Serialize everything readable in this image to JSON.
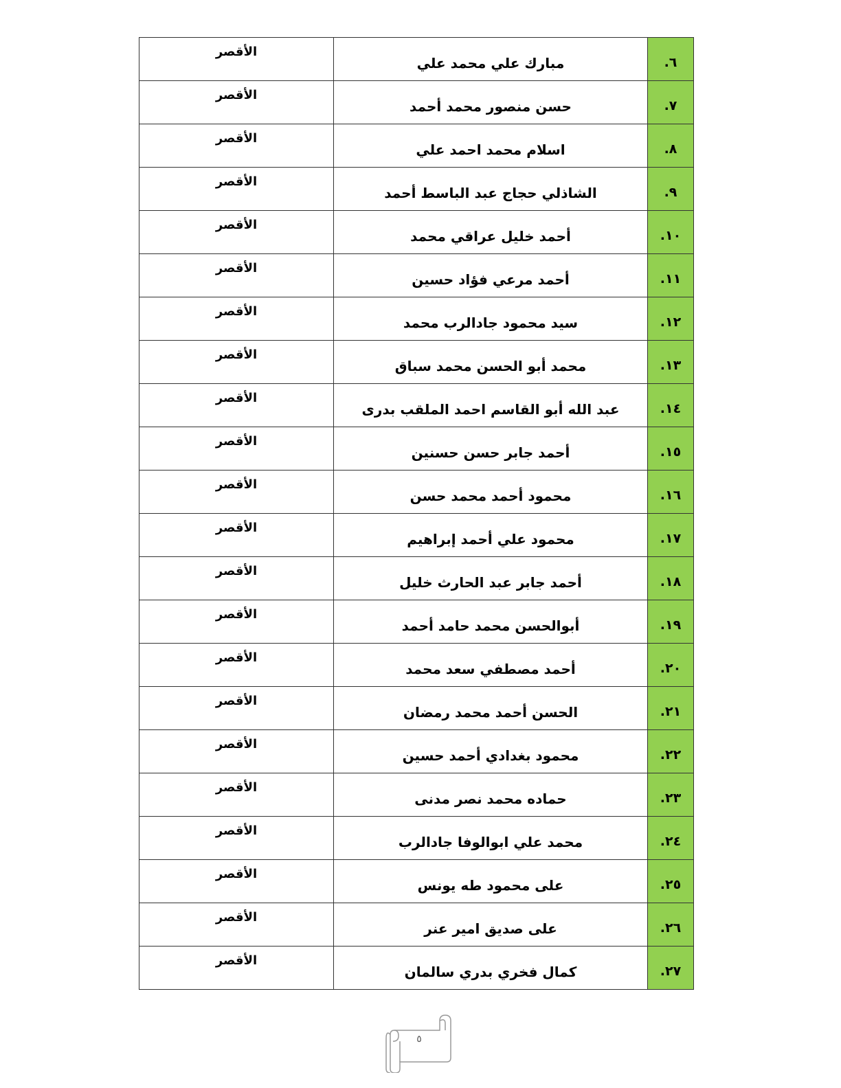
{
  "rows": [
    {
      "num": "٦.",
      "name": "مبارك علي محمد علي",
      "city": "الأقصر"
    },
    {
      "num": "٧.",
      "name": "حسن منصور محمد أحمد",
      "city": "الأقصر"
    },
    {
      "num": "٨.",
      "name": "اسلام محمد احمد علي",
      "city": "الأقصر"
    },
    {
      "num": "٩.",
      "name": "الشاذلي حجاج عبد الباسط أحمد",
      "city": "الأقصر"
    },
    {
      "num": "١٠.",
      "name": "أحمد خليل عراقي محمد",
      "city": "الأقصر"
    },
    {
      "num": "١١.",
      "name": "أحمد مرعي فؤاد حسين",
      "city": "الأقصر"
    },
    {
      "num": "١٢.",
      "name": "سيد محمود جادالرب محمد",
      "city": "الأقصر"
    },
    {
      "num": "١٣.",
      "name": "محمد أبو الحسن محمد سباق",
      "city": "الأقصر"
    },
    {
      "num": "١٤.",
      "name": "عبد الله أبو القاسم احمد الملقب بدرى",
      "city": "الأقصر"
    },
    {
      "num": "١٥.",
      "name": "أحمد جابر حسن حسنين",
      "city": "الأقصر"
    },
    {
      "num": "١٦.",
      "name": "محمود أحمد محمد حسن",
      "city": "الأقصر"
    },
    {
      "num": "١٧.",
      "name": "محمود علي أحمد إبراهيم",
      "city": "الأقصر"
    },
    {
      "num": "١٨.",
      "name": "أحمد جابر عبد الحارث خليل",
      "city": "الأقصر"
    },
    {
      "num": "١٩.",
      "name": "أبوالحسن محمد حامد أحمد",
      "city": "الأقصر"
    },
    {
      "num": "٢٠.",
      "name": "أحمد مصطفي سعد محمد",
      "city": "الأقصر"
    },
    {
      "num": "٢١.",
      "name": "الحسن أحمد محمد رمضان",
      "city": "الأقصر"
    },
    {
      "num": "٢٢.",
      "name": "محمود بغدادي أحمد حسين",
      "city": "الأقصر"
    },
    {
      "num": "٢٣.",
      "name": "حماده محمد نصر مدنى",
      "city": "الأقصر"
    },
    {
      "num": "٢٤.",
      "name": "محمد علي ابوالوفا جادالرب",
      "city": "الأقصر"
    },
    {
      "num": "٢٥.",
      "name": "على محمود طه يونس",
      "city": "الأقصر"
    },
    {
      "num": "٢٦.",
      "name": "على صديق امير عنر",
      "city": "الأقصر"
    },
    {
      "num": "٢٧.",
      "name": "كمال فخري بدري سالمان",
      "city": "الأقصر"
    }
  ],
  "page_number": "٥",
  "colors": {
    "number_column": "#92d050",
    "border": "#333333"
  },
  "icons": {
    "page_number_frame": "scroll-icon"
  }
}
